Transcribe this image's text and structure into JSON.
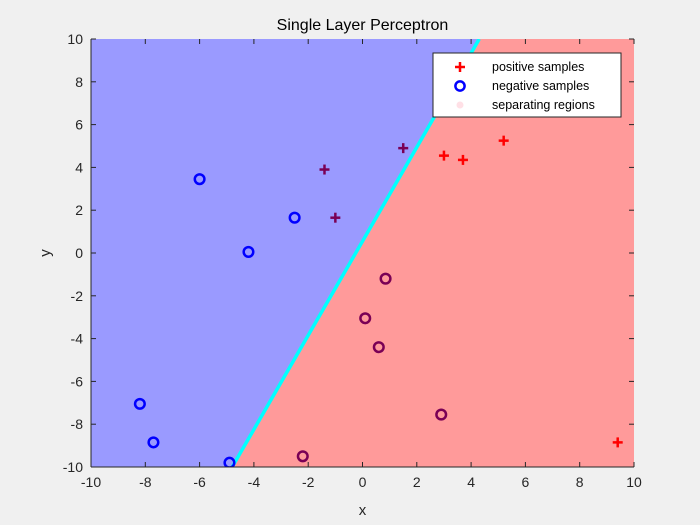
{
  "chart_data": {
    "type": "scatter",
    "title": "Single Layer Perceptron",
    "xlabel": "x",
    "ylabel": "y",
    "xlim": [
      -10,
      10
    ],
    "ylim": [
      -10,
      10
    ],
    "xticks": [
      "-10",
      "-8",
      "-6",
      "-4",
      "-2",
      "0",
      "2",
      "4",
      "6",
      "8",
      "10"
    ],
    "yticks": [
      "-10",
      "-8",
      "-6",
      "-4",
      "-2",
      "0",
      "2",
      "4",
      "6",
      "8",
      "10"
    ],
    "grid": false,
    "legend_position": "top-right",
    "colors": {
      "positive": "#ff0000",
      "negative": "#0000ff",
      "positive_region": "#ff9a9a",
      "negative_region": "#9a9aff",
      "boundary": "#00ffff"
    },
    "boundary_line": {
      "x": [
        -4.8,
        4.3
      ],
      "y": [
        -10,
        10
      ]
    },
    "series": [
      {
        "name": "positive samples",
        "marker": "plus",
        "points": [
          [
            -1.4,
            3.9
          ],
          [
            -1.0,
            1.65
          ],
          [
            1.5,
            4.9
          ],
          [
            3.0,
            4.55
          ],
          [
            3.7,
            4.35
          ],
          [
            5.2,
            5.25
          ],
          [
            9.4,
            -8.85
          ]
        ]
      },
      {
        "name": "negative samples",
        "marker": "circle",
        "points": [
          [
            -6.0,
            3.45
          ],
          [
            -2.5,
            1.65
          ],
          [
            -4.2,
            0.05
          ],
          [
            -8.2,
            -7.05
          ],
          [
            -7.7,
            -8.85
          ],
          [
            -4.9,
            -9.8
          ],
          [
            -2.2,
            -9.5
          ],
          [
            0.85,
            -1.2
          ],
          [
            0.1,
            -3.05
          ],
          [
            0.6,
            -4.4
          ],
          [
            2.9,
            -7.55
          ]
        ]
      },
      {
        "name": "separating regions",
        "marker": "region"
      }
    ]
  }
}
